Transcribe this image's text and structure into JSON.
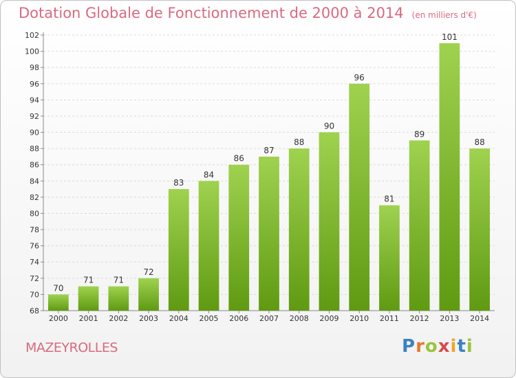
{
  "chart_data": {
    "type": "bar",
    "title": "Dotation Globale de Fonctionnement de 2000 à 2014",
    "unit_label": "(en milliers d'€)",
    "categories": [
      "2000",
      "2001",
      "2002",
      "2003",
      "2004",
      "2005",
      "2006",
      "2007",
      "2008",
      "2009",
      "2010",
      "2011",
      "2012",
      "2013",
      "2014"
    ],
    "values": [
      70,
      71,
      71,
      72,
      83,
      84,
      86,
      87,
      88,
      90,
      96,
      81,
      89,
      101,
      88
    ],
    "ylim": [
      68,
      102
    ],
    "yticks": [
      68,
      70,
      72,
      74,
      76,
      78,
      80,
      82,
      84,
      86,
      88,
      90,
      92,
      94,
      96,
      98,
      100,
      102
    ],
    "grid": true,
    "bar_colors": [
      "#5f9a12",
      "#9fd24f"
    ],
    "legend": "none"
  },
  "footer": {
    "commune": "MAZEYROLLES",
    "logo_text": "Proxiti"
  }
}
